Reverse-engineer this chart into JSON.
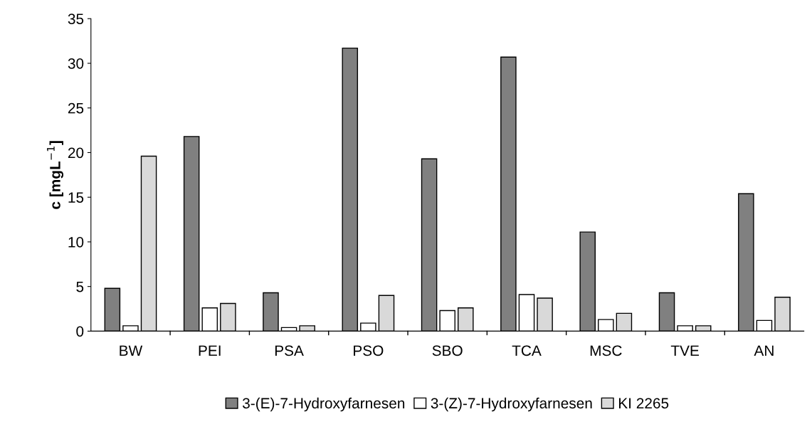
{
  "chart_data": {
    "type": "bar",
    "ylabel": "c [mgL$^{−1}$]",
    "categories": [
      "BW",
      "PEI",
      "PSA",
      "PSO",
      "SBO",
      "TCA",
      "MSC",
      "TVE",
      "AN"
    ],
    "series": [
      {
        "name": "3-(E)-7-Hydroxyfarnesen",
        "color": "#808080",
        "values": [
          4.8,
          21.8,
          4.3,
          31.7,
          19.3,
          30.7,
          11.1,
          4.3,
          15.4
        ]
      },
      {
        "name": "3-(Z)-7-Hydroxyfarnesen",
        "color": "#ffffff",
        "values": [
          0.6,
          2.6,
          0.4,
          0.9,
          2.3,
          4.1,
          1.3,
          0.6,
          1.2
        ]
      },
      {
        "name": "KI 2265",
        "color": "#d9d9d9",
        "values": [
          19.6,
          3.1,
          0.6,
          4.0,
          2.6,
          3.7,
          2.0,
          0.6,
          3.8
        ]
      }
    ],
    "ylim": [
      0,
      35
    ],
    "yticks": [
      0,
      5,
      10,
      15,
      20,
      25,
      30,
      35
    ],
    "grid": false,
    "legend": "bottom"
  }
}
